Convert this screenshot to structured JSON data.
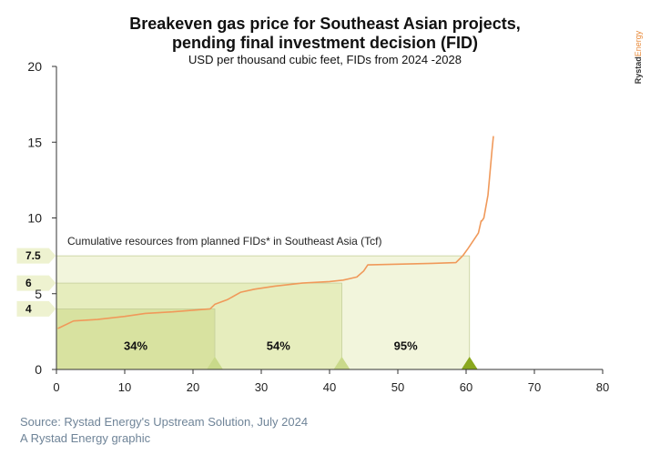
{
  "header": {
    "title_line1": "Breakeven gas price for Southeast Asian projects,",
    "title_line2": "pending final investment decision (FID)",
    "subtitle": "USD per thousand cubic feet, FIDs from 2024 -2028",
    "brand_a": "Rystad",
    "brand_b": "Energy"
  },
  "footer": {
    "source": "Source: Rystad Energy's Upstream Solution, July 2024",
    "credit": "A Rystad Energy graphic"
  },
  "colors": {
    "line": "#f0995a",
    "band_light": "#f2f5dc",
    "band_mid": "#e6edbd",
    "band_dark": "#d8e2a0",
    "triangle_light": "#c9d98a",
    "triangle_dark": "#8aa81e",
    "label_bg": "#eef2d0",
    "axis": "#333333"
  },
  "chart_data": {
    "type": "line",
    "title": "Breakeven gas price for Southeast Asian projects, pending final investment decision (FID)",
    "subtitle": "USD per thousand cubic feet, FIDs from 2024 -2028",
    "xlim": [
      0,
      80
    ],
    "ylim": [
      0,
      20
    ],
    "x_ticks": [
      0,
      10,
      20,
      30,
      40,
      50,
      60,
      70,
      80
    ],
    "y_ticks": [
      0,
      5,
      10,
      15,
      20
    ],
    "series": [
      {
        "name": "Breakeven gas price",
        "x": [
          0.2,
          2.5,
          6,
          10,
          13,
          17,
          22.5,
          23.2,
          25,
          27,
          29,
          32,
          36,
          40,
          42,
          44,
          45,
          45.6,
          50,
          55,
          58.5,
          59.5,
          60.3,
          61.2,
          61.8,
          62.2,
          62.3,
          62.6,
          62.8,
          63.2,
          63.4,
          63.6,
          63.8,
          64.0
        ],
        "y": [
          2.7,
          3.2,
          3.3,
          3.5,
          3.7,
          3.8,
          4.0,
          4.3,
          4.6,
          5.1,
          5.3,
          5.5,
          5.7,
          5.8,
          5.9,
          6.1,
          6.5,
          6.9,
          6.95,
          7.0,
          7.05,
          7.5,
          8.0,
          8.6,
          9.0,
          9.8,
          9.8,
          10.0,
          10.5,
          11.5,
          12.5,
          13.5,
          14.5,
          15.4
        ]
      }
    ],
    "annotation_title": "Cumulative resources from planned FIDs* in Southeast Asia (Tcf)",
    "thresholds": [
      {
        "price_label": "4",
        "price": 4,
        "x_end": 23.2,
        "share": "34%"
      },
      {
        "price_label": "6",
        "price": 5.7,
        "x_end": 41.8,
        "share": "54%"
      },
      {
        "price_label": "7.5",
        "price": 7.5,
        "x_end": 60.5,
        "share": "95%"
      }
    ]
  }
}
